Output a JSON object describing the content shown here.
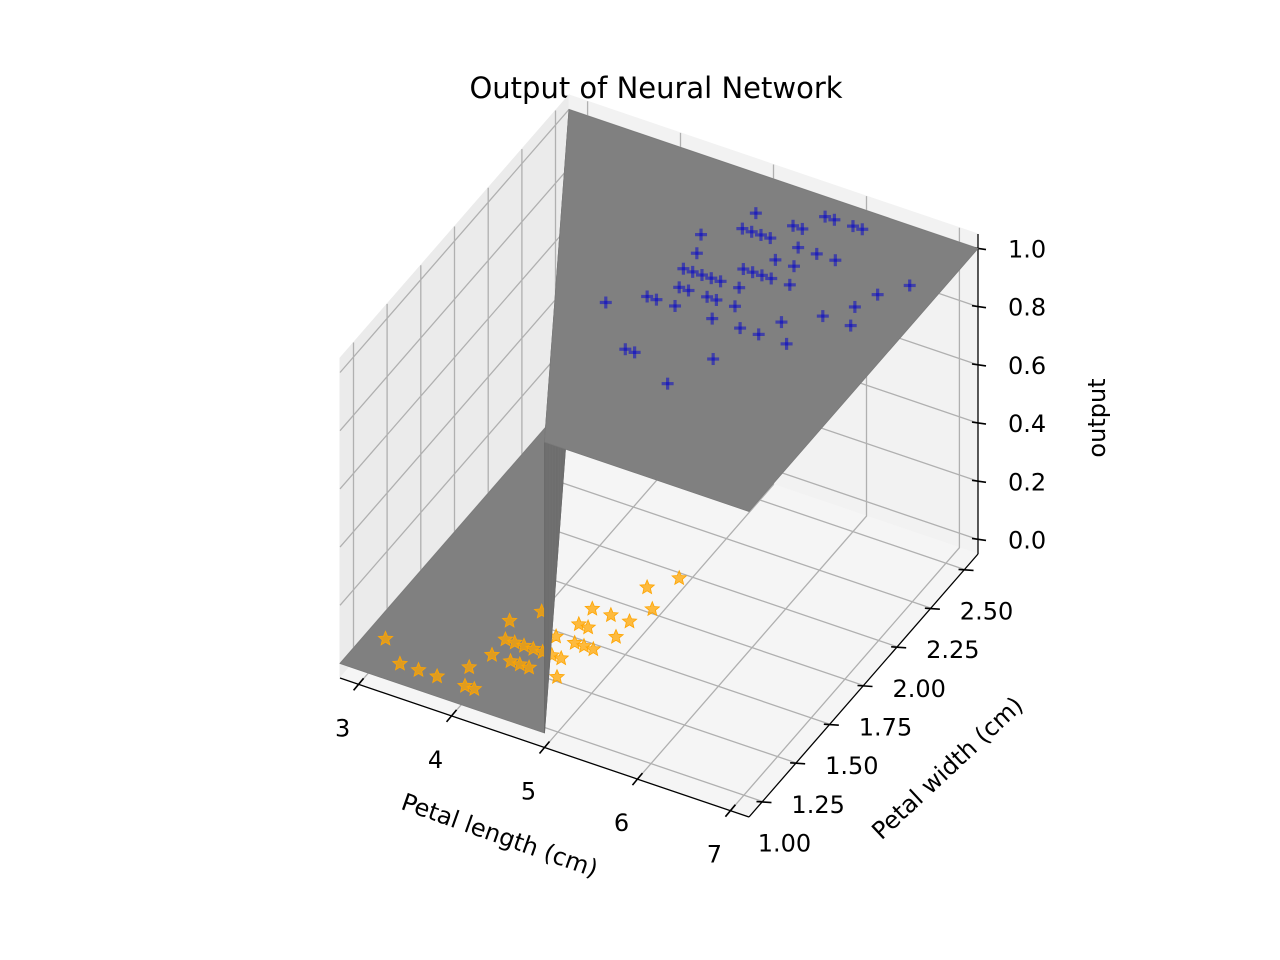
{
  "chart_data": {
    "type": "scatter",
    "subtype": "3d-surface-with-scatter",
    "title": "Output of Neural Network",
    "xlabel": "Petal length (cm)",
    "ylabel": "Petal width (cm)",
    "zlabel": "output",
    "x_ticks": [
      "3",
      "4",
      "5",
      "6",
      "7"
    ],
    "y_ticks": [
      "1.00",
      "1.25",
      "1.50",
      "1.75",
      "2.00",
      "2.25",
      "2.50"
    ],
    "z_ticks": [
      "0.0",
      "0.2",
      "0.4",
      "0.6",
      "0.8",
      "1.0"
    ],
    "xlim": [
      2.8,
      7.2
    ],
    "ylim": [
      0.9,
      2.6
    ],
    "zlim": [
      -0.05,
      1.05
    ],
    "grid": true,
    "surface": {
      "color": "#808080",
      "description_values": {
        "low_value": 0,
        "high_value": 1,
        "boundary_petal_length_at_min_width": 5.0,
        "boundary_petal_length_at_max_width": 2.8
      }
    },
    "series": [
      {
        "marker": "star",
        "color": "#ffa500",
        "z": 0,
        "points": [
          [
            3.0,
            1.1
          ],
          [
            3.3,
            1.0
          ],
          [
            3.5,
            1.0
          ],
          [
            3.7,
            1.0
          ],
          [
            3.9,
            1.1
          ],
          [
            4.0,
            1.0
          ],
          [
            3.9,
            1.4
          ],
          [
            4.0,
            1.3
          ],
          [
            4.1,
            1.3
          ],
          [
            4.2,
            1.3
          ],
          [
            4.3,
            1.3
          ],
          [
            4.4,
            1.4
          ],
          [
            4.5,
            1.5
          ],
          [
            4.5,
            1.3
          ],
          [
            4.6,
            1.4
          ],
          [
            4.7,
            1.4
          ],
          [
            4.7,
            1.6
          ],
          [
            4.8,
            1.8
          ],
          [
            4.4,
            1.2
          ],
          [
            4.6,
            1.5
          ],
          [
            4.2,
            1.2
          ],
          [
            4.3,
            1.2
          ],
          [
            4.0,
            1.2
          ],
          [
            4.1,
            1.0
          ],
          [
            4.9,
            1.5
          ],
          [
            4.8,
            1.4
          ],
          [
            5.0,
            1.7
          ],
          [
            4.5,
            1.6
          ],
          [
            4.1,
            1.5
          ],
          [
            4.4,
            1.3
          ],
          [
            4.9,
            1.6
          ],
          [
            5.0,
            1.9
          ],
          [
            4.7,
            1.2
          ],
          [
            4.6,
            1.3
          ]
        ]
      },
      {
        "marker": "plus",
        "color": "#0000cd",
        "z": 1,
        "points": [
          [
            5.8,
            2.5
          ],
          [
            6.1,
            2.5
          ],
          [
            6.0,
            2.5
          ],
          [
            6.7,
            2.2
          ],
          [
            6.9,
            2.3
          ],
          [
            6.7,
            2.0
          ],
          [
            6.6,
            2.1
          ],
          [
            6.3,
            1.8
          ],
          [
            6.1,
            1.9
          ],
          [
            5.9,
            2.1
          ],
          [
            5.6,
            2.4
          ],
          [
            5.5,
            2.1
          ],
          [
            5.4,
            2.3
          ],
          [
            5.3,
            2.3
          ],
          [
            5.1,
            2.3
          ],
          [
            5.2,
            2.0
          ],
          [
            5.6,
            2.2
          ],
          [
            5.5,
            1.8
          ],
          [
            5.7,
            2.3
          ],
          [
            5.8,
            2.2
          ],
          [
            6.1,
            2.3
          ],
          [
            5.9,
            2.3
          ],
          [
            5.0,
            2.0
          ],
          [
            5.1,
            1.8
          ],
          [
            5.1,
            1.9
          ],
          [
            4.8,
            1.8
          ],
          [
            4.9,
            1.8
          ],
          [
            5.0,
            1.5
          ],
          [
            5.1,
            2.4
          ],
          [
            5.6,
            2.1
          ],
          [
            5.4,
            2.1
          ],
          [
            5.1,
            1.5
          ],
          [
            5.6,
            1.4
          ],
          [
            6.4,
            2.0
          ],
          [
            5.7,
            2.5
          ],
          [
            5.8,
            1.8
          ],
          [
            5.3,
            1.9
          ],
          [
            5.5,
            2.0
          ],
          [
            5.6,
            1.9
          ],
          [
            5.2,
            2.3
          ],
          [
            5.4,
            1.9
          ],
          [
            5.0,
            1.9
          ],
          [
            4.9,
            2.0
          ],
          [
            4.5,
            1.7
          ],
          [
            5.7,
            2.1
          ],
          [
            6.0,
            1.8
          ],
          [
            5.8,
            1.6
          ],
          [
            5.1,
            2.0
          ],
          [
            5.3,
            2.0
          ],
          [
            4.8,
            2.2
          ],
          [
            4.9,
            2.1
          ],
          [
            5.5,
            2.4
          ]
        ]
      }
    ]
  }
}
